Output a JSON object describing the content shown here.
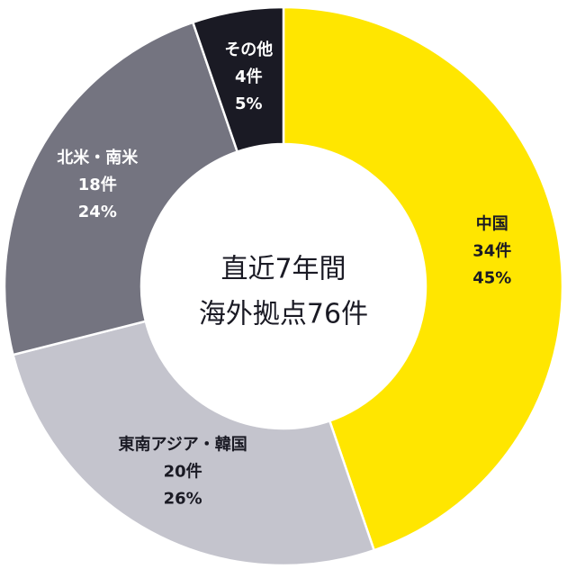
{
  "chart_data": {
    "type": "donut",
    "center_text": [
      "直近7年間",
      "海外拠点76件"
    ],
    "categories": [
      "中国",
      "東南アジア・韓国",
      "北米・南米",
      "その他"
    ],
    "values": [
      34,
      20,
      18,
      4
    ],
    "value_labels": [
      "34件",
      "20件",
      "18件",
      "4件"
    ],
    "percentage_labels": [
      "45%",
      "26%",
      "24%",
      "5%"
    ],
    "colors": [
      "#ffe600",
      "#c4c4cd",
      "#747480",
      "#1a1a24"
    ],
    "label_colors": [
      "#1a1a24",
      "#1a1a24",
      "#ffffff",
      "#ffffff"
    ]
  }
}
